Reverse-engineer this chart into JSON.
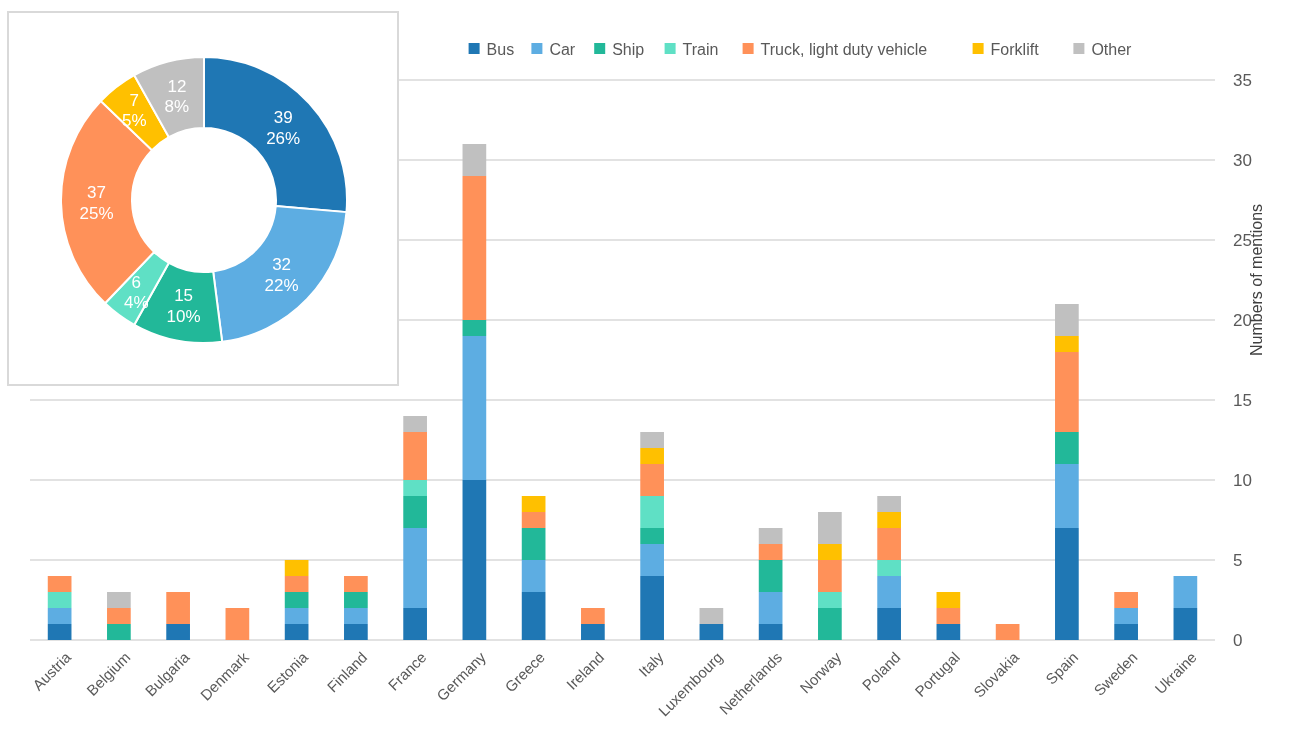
{
  "chart_data": [
    {
      "type": "bar",
      "stacked": true,
      "ylabel": "Numbers of mentions",
      "categories": [
        "Austria",
        "Belgium",
        "Bulgaria",
        "Denmark",
        "Estonia",
        "Finland",
        "France",
        "Germany",
        "Greece",
        "Ireland",
        "Italy",
        "Luxembourg",
        "Netherlands",
        "Norway",
        "Poland",
        "Portugal",
        "Slovakia",
        "Spain",
        "Sweden",
        "Ukraine"
      ],
      "series": [
        {
          "name": "Bus",
          "color": "#1f77b4",
          "values": [
            1,
            0,
            1,
            0,
            1,
            1,
            2,
            10,
            3,
            1,
            4,
            1,
            1,
            0,
            2,
            1,
            0,
            7,
            1,
            2
          ]
        },
        {
          "name": "Car",
          "color": "#5dade2",
          "values": [
            1,
            0,
            0,
            0,
            1,
            1,
            5,
            9,
            2,
            0,
            2,
            0,
            2,
            0,
            2,
            0,
            0,
            4,
            1,
            2
          ]
        },
        {
          "name": "Ship",
          "color": "#22b899",
          "values": [
            0,
            1,
            0,
            0,
            1,
            1,
            2,
            1,
            2,
            0,
            1,
            0,
            2,
            2,
            0,
            0,
            0,
            2,
            0,
            0
          ]
        },
        {
          "name": "Train",
          "color": "#5fe0c5",
          "values": [
            1,
            0,
            0,
            0,
            0,
            0,
            1,
            0,
            0,
            0,
            2,
            0,
            0,
            1,
            1,
            0,
            0,
            0,
            0,
            0
          ]
        },
        {
          "name": "Truck, light duty vehicle",
          "color": "#ff9159",
          "values": [
            1,
            1,
            2,
            2,
            1,
            1,
            3,
            9,
            1,
            1,
            2,
            0,
            1,
            2,
            2,
            1,
            1,
            5,
            1,
            0
          ]
        },
        {
          "name": "Forklift",
          "color": "#ffc000",
          "values": [
            0,
            0,
            0,
            0,
            1,
            0,
            0,
            0,
            1,
            0,
            1,
            0,
            0,
            1,
            1,
            1,
            0,
            1,
            0,
            0
          ]
        },
        {
          "name": "Other",
          "color": "#c0c0c0",
          "values": [
            0,
            1,
            0,
            0,
            0,
            0,
            1,
            2,
            0,
            0,
            1,
            1,
            1,
            2,
            1,
            0,
            0,
            2,
            0,
            0
          ]
        }
      ],
      "ylim": [
        0,
        35
      ],
      "yticks": [
        0,
        5,
        10,
        15,
        20,
        25,
        30,
        35
      ],
      "grid": "y",
      "legend": "top"
    },
    {
      "type": "donut",
      "values": [
        39,
        32,
        15,
        6,
        37,
        7,
        12
      ],
      "colors": [
        "#1f77b4",
        "#5dade2",
        "#22b899",
        "#5fe0c5",
        "#ff9159",
        "#ffc000",
        "#c0c0c0"
      ],
      "value_labels": [
        "39\n26%",
        "32\n22%",
        "15\n10%",
        "6\n4%",
        "37\n25%",
        "7\n5%",
        "12\n8%"
      ]
    }
  ]
}
